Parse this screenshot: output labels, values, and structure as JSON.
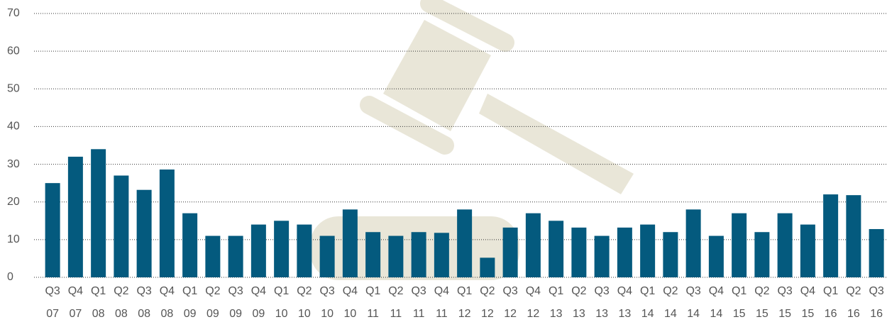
{
  "chart_data": {
    "type": "bar",
    "categories": [
      [
        "Q3",
        "07"
      ],
      [
        "Q4",
        "07"
      ],
      [
        "Q1",
        "08"
      ],
      [
        "Q2",
        "08"
      ],
      [
        "Q3",
        "08"
      ],
      [
        "Q4",
        "08"
      ],
      [
        "Q1",
        "09"
      ],
      [
        "Q2",
        "09"
      ],
      [
        "Q3",
        "09"
      ],
      [
        "Q4",
        "09"
      ],
      [
        "Q1",
        "10"
      ],
      [
        "Q2",
        "10"
      ],
      [
        "Q3",
        "10"
      ],
      [
        "Q4",
        "10"
      ],
      [
        "Q1",
        "11"
      ],
      [
        "Q2",
        "11"
      ],
      [
        "Q3",
        "11"
      ],
      [
        "Q4",
        "11"
      ],
      [
        "Q1",
        "12"
      ],
      [
        "Q2",
        "12"
      ],
      [
        "Q3",
        "12"
      ],
      [
        "Q4",
        "12"
      ],
      [
        "Q1",
        "13"
      ],
      [
        "Q2",
        "13"
      ],
      [
        "Q3",
        "13"
      ],
      [
        "Q4",
        "13"
      ],
      [
        "Q1",
        "14"
      ],
      [
        "Q2",
        "14"
      ],
      [
        "Q3",
        "14"
      ],
      [
        "Q4",
        "14"
      ],
      [
        "Q1",
        "15"
      ],
      [
        "Q2",
        "15"
      ],
      [
        "Q3",
        "15"
      ],
      [
        "Q4",
        "15"
      ],
      [
        "Q1",
        "16"
      ],
      [
        "Q2",
        "16"
      ],
      [
        "Q3",
        "16"
      ]
    ],
    "values": [
      25,
      32,
      34,
      27,
      23.2,
      28.6,
      17,
      11,
      11,
      14,
      15,
      14,
      11,
      18,
      12,
      11,
      12,
      11.8,
      18,
      5.2,
      13.2,
      17,
      15,
      13.2,
      11,
      13.2,
      14,
      12,
      18,
      11,
      17,
      12,
      17,
      14,
      22,
      21.8,
      12.8
    ],
    "color": "#045a7e",
    "ylim": [
      0,
      70
    ],
    "yticks": [
      0,
      10,
      20,
      30,
      40,
      50,
      60,
      70
    ],
    "grid": true
  }
}
